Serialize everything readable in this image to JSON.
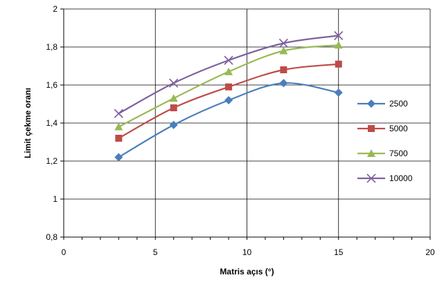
{
  "chart_data": {
    "type": "line",
    "title": "",
    "xlabel": "Matris açıs (°)",
    "ylabel": "Limit çekme oranı",
    "xlim": [
      0,
      20
    ],
    "ylim": [
      0.8,
      2.0
    ],
    "x_ticks": [
      0,
      5,
      10,
      15,
      20
    ],
    "y_ticks": [
      0.8,
      1.0,
      1.2,
      1.4,
      1.6,
      1.8,
      2.0
    ],
    "x_tick_labels": [
      "0",
      "5",
      "10",
      "15",
      "20"
    ],
    "y_tick_labels": [
      "0,8",
      "1",
      "1,2",
      "1,4",
      "1,6",
      "1,8",
      "2"
    ],
    "grid": true,
    "smooth": true,
    "legend_position": "right",
    "x": [
      3,
      6,
      9,
      12,
      15
    ],
    "series": [
      {
        "name": "2500",
        "values": [
          1.22,
          1.39,
          1.52,
          1.61,
          1.56
        ],
        "color": "#4A7EBB",
        "marker": "diamond"
      },
      {
        "name": "5000",
        "values": [
          1.32,
          1.48,
          1.59,
          1.68,
          1.71
        ],
        "color": "#BE4B48",
        "marker": "square"
      },
      {
        "name": "7500",
        "values": [
          1.38,
          1.53,
          1.67,
          1.78,
          1.81
        ],
        "color": "#98B954",
        "marker": "triangle"
      },
      {
        "name": "10000",
        "values": [
          1.45,
          1.61,
          1.73,
          1.82,
          1.86
        ],
        "color": "#7D60A0",
        "marker": "x"
      }
    ]
  }
}
